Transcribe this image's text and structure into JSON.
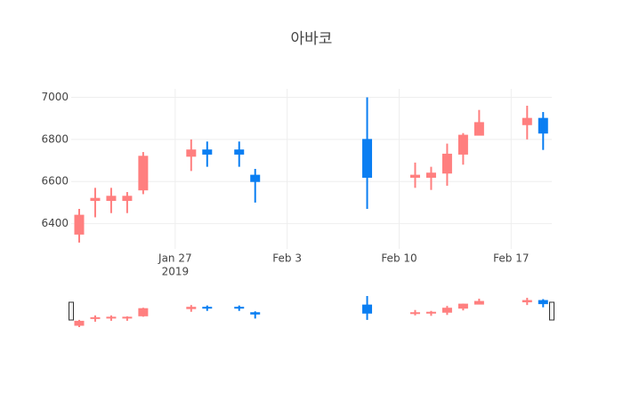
{
  "chart_data": {
    "type": "candlestick",
    "title": "아바코",
    "x": [
      "2019-01-21",
      "2019-01-22",
      "2019-01-23",
      "2019-01-24",
      "2019-01-25",
      "2019-01-28",
      "2019-01-29",
      "2019-01-31",
      "2019-02-01",
      "2019-02-08",
      "2019-02-11",
      "2019-02-12",
      "2019-02-13",
      "2019-02-14",
      "2019-02-15",
      "2019-02-18",
      "2019-02-19"
    ],
    "open": [
      6350,
      6510,
      6510,
      6510,
      6560,
      6720,
      6750,
      6750,
      6630,
      6800,
      6620,
      6620,
      6640,
      6730,
      6820,
      6870,
      6900
    ],
    "high": [
      6470,
      6570,
      6570,
      6550,
      6740,
      6800,
      6790,
      6790,
      6660,
      7000,
      6690,
      6670,
      6780,
      6830,
      6940,
      6960,
      6930
    ],
    "low": [
      6310,
      6430,
      6450,
      6450,
      6540,
      6650,
      6670,
      6670,
      6500,
      6470,
      6570,
      6560,
      6580,
      6680,
      6820,
      6800,
      6750
    ],
    "close": [
      6440,
      6520,
      6530,
      6530,
      6720,
      6750,
      6730,
      6730,
      6600,
      6620,
      6630,
      6640,
      6730,
      6820,
      6880,
      6900,
      6830
    ],
    "increasing_color": "#ff7f7f",
    "decreasing_color": "#0a7ef2",
    "xlim": [
      "2019-01-20T12:00",
      "2019-02-19T13:00"
    ],
    "xticks": [
      {
        "value": "2019-01-27",
        "label": "Jan 27"
      },
      {
        "value": "2019-02-03",
        "label": "Feb 3"
      },
      {
        "value": "2019-02-10",
        "label": "Feb 10"
      },
      {
        "value": "2019-02-17",
        "label": "Feb 17"
      }
    ],
    "x_year_label": "2019",
    "ylim": [
      6280,
      7040
    ],
    "yticks": [
      6400,
      6600,
      6800,
      7000
    ],
    "grid": true,
    "rangeslider": true
  }
}
